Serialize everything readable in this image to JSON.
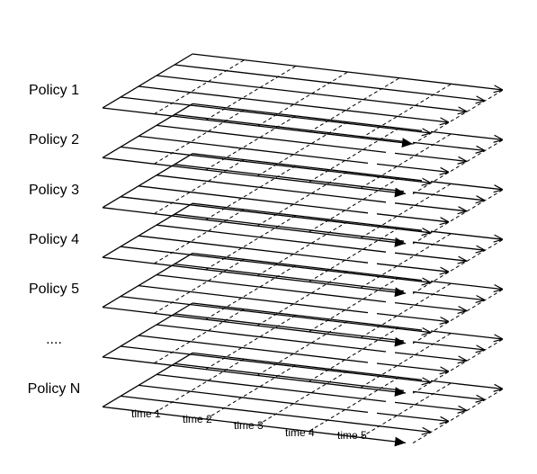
{
  "colors": {
    "line": "#000000",
    "background": "#ffffff"
  },
  "policies": [
    "Policy 1",
    "Policy 2",
    "Policy 3",
    "Policy 4",
    "Policy 5",
    "....",
    "Policy N"
  ],
  "time_labels": [
    "time 1",
    "time 2",
    "time 3",
    "time 4",
    "time 5"
  ]
}
